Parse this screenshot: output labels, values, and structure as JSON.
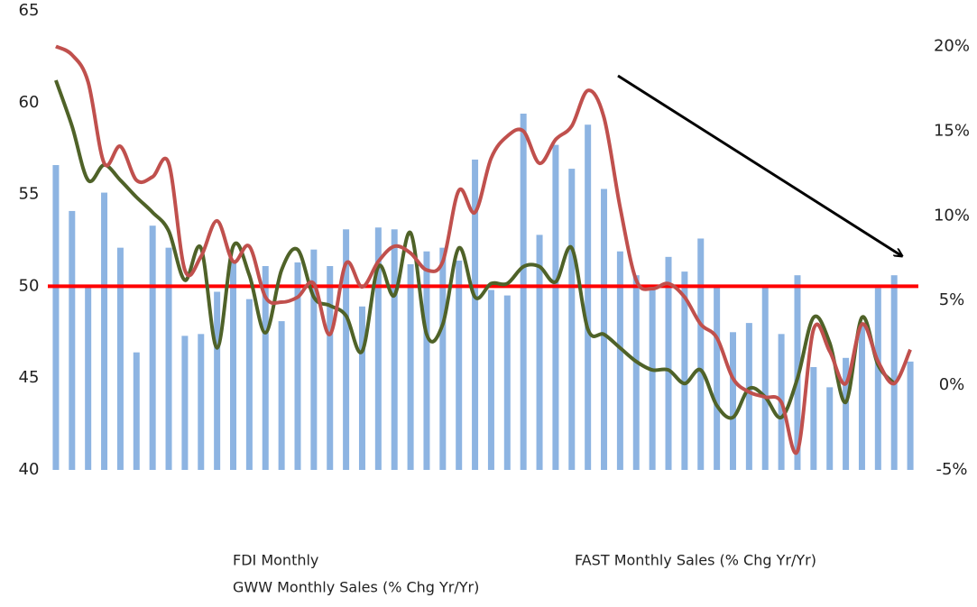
{
  "chart_data": {
    "type": "combo",
    "categories": [
      null,
      null,
      null,
      null,
      null,
      null,
      null,
      null,
      null,
      null,
      null,
      null,
      null,
      null,
      null,
      null,
      null,
      null,
      null,
      null,
      null,
      null,
      null,
      null,
      null,
      null,
      null,
      null,
      null,
      null,
      null,
      null,
      null,
      null,
      null,
      null,
      null,
      null,
      null,
      null,
      null,
      null,
      null,
      null,
      null,
      null,
      null,
      null,
      null,
      null,
      null,
      null,
      null,
      null
    ],
    "series": [
      {
        "name": "FDI Monthly",
        "type": "bar",
        "color": "#8db4e2",
        "values": [
          56.6,
          54.1,
          50.0,
          55.1,
          52.1,
          46.4,
          53.3,
          52.1,
          47.3,
          47.4,
          49.7,
          51.4,
          49.3,
          51.1,
          48.1,
          51.3,
          52.0,
          51.1,
          53.1,
          48.9,
          53.2,
          53.1,
          51.2,
          51.9,
          52.1,
          51.4,
          56.9,
          49.8,
          49.5,
          59.4,
          52.8,
          57.7,
          56.4,
          58.8,
          55.3,
          51.9,
          50.6,
          49.9,
          51.6,
          50.8,
          52.6,
          50.0,
          47.5,
          48.0,
          50.0,
          47.4,
          50.6,
          45.6,
          44.5,
          46.1,
          48.0,
          49.9,
          50.6,
          45.9
        ]
      },
      {
        "name": "GWW Monthly Sales (% Chg Yr/Yr)",
        "type": "line",
        "axis": "y2",
        "color": "#4f6228",
        "values": [
          18.0,
          15.3,
          12.1,
          13.0,
          12.1,
          11.1,
          10.2,
          9.1,
          6.2,
          8.1,
          2.2,
          8.2,
          6.5,
          3.1,
          6.8,
          8.0,
          5.2,
          4.7,
          4.1,
          2.0,
          7.0,
          5.3,
          9.0,
          3.0,
          3.6,
          8.1,
          5.2,
          6.0,
          6.0,
          7.0,
          7.0,
          6.1,
          8.1,
          3.3,
          3.0,
          2.2,
          1.4,
          0.9,
          0.9,
          0.1,
          0.9,
          -1.2,
          -1.9,
          -0.2,
          -0.7,
          -1.9,
          0.4,
          4.0,
          2.5,
          -1.0,
          4.0,
          1.2,
          0.1,
          null
        ]
      },
      {
        "name": "FAST Monthly Sales (% Chg Yr/Yr)",
        "type": "line",
        "axis": "y2",
        "color": "#c0504d",
        "values": [
          20.0,
          19.5,
          17.9,
          13.1,
          14.1,
          12.1,
          12.3,
          13.1,
          6.8,
          7.6,
          9.7,
          7.3,
          8.2,
          5.2,
          4.9,
          5.2,
          6.0,
          3.0,
          7.2,
          5.8,
          7.3,
          8.2,
          7.8,
          6.8,
          7.3,
          11.5,
          10.2,
          13.4,
          14.7,
          15.0,
          13.1,
          14.5,
          15.3,
          17.4,
          15.8,
          10.5,
          6.2,
          5.7,
          6.0,
          5.2,
          3.6,
          2.8,
          0.4,
          -0.4,
          -0.7,
          -1.0,
          -3.9,
          3.3,
          2.0,
          0.1,
          3.6,
          1.4,
          0.1,
          2.1
        ]
      }
    ],
    "reference_line": {
      "value": 50,
      "color": "#ff0000"
    },
    "ylim": [
      40,
      65
    ],
    "yticks": [
      40,
      45,
      50,
      55,
      60,
      65
    ],
    "y2lim": [
      -5,
      22.1
    ],
    "y2ticks": [
      {
        "value": -5,
        "label": "-5%"
      },
      {
        "value": 0,
        "label": "0%"
      },
      {
        "value": 5,
        "label": "5%"
      },
      {
        "value": 10,
        "label": "10%"
      },
      {
        "value": 15,
        "label": "15%"
      },
      {
        "value": 20,
        "label": "20%"
      }
    ],
    "grid": false
  }
}
